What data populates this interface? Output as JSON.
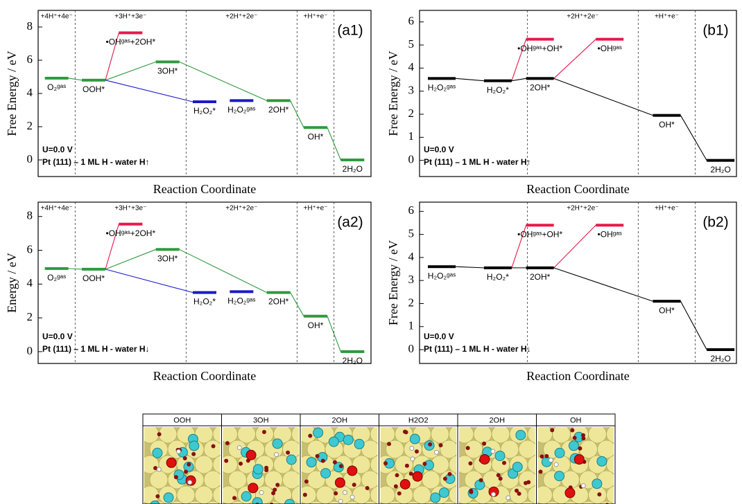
{
  "chart_data": [
    {
      "type": "energy_levels",
      "panel": "(a1)",
      "ylabel": "Free Energy / eV",
      "xlabel": "Reaction Coordinate",
      "ylim": [
        -1,
        9
      ],
      "yticks": [
        0,
        2,
        4,
        6,
        8
      ],
      "steps": [
        "+4H⁺+4e⁻",
        "+3H⁺+3e⁻",
        "+2H⁺+2e⁻",
        "+H⁺+e⁻"
      ],
      "annotations": [
        "U=0.0 V",
        "Pt (111) – 1 ML H - water H↑"
      ],
      "levels": [
        {
          "label": "O₂ᵍᵃˢ",
          "value": 4.92,
          "color": "#2e9a3e"
        },
        {
          "label": "OOH*",
          "value": 4.8,
          "color": "#2e9a3e"
        },
        {
          "label": "•OHᵍᵃˢ+2OH*",
          "value": 7.65,
          "color": "#e8174a"
        },
        {
          "label": "3OH*",
          "value": 5.9,
          "color": "#2e9a3e"
        },
        {
          "label": "H₂O₂*",
          "value": 3.5,
          "color": "#1a1ac8"
        },
        {
          "label": "H₂O₂ᵍᵃˢ",
          "value": 3.57,
          "color": "#1a1ac8"
        },
        {
          "label": "2OH*",
          "value": 3.57,
          "color": "#2e9a3e"
        },
        {
          "label": "OH*",
          "value": 1.95,
          "color": "#2e9a3e"
        },
        {
          "label": "2H₂O",
          "value": 0,
          "color": "#2e9a3e"
        }
      ]
    },
    {
      "type": "energy_levels",
      "panel": "(b1)",
      "ylabel": "Free Energy / eV",
      "xlabel": "Reaction Coordinate",
      "ylim": [
        -0.7,
        6.5
      ],
      "yticks": [
        0,
        1,
        2,
        3,
        4,
        5,
        6
      ],
      "steps": [
        "+2H⁺+2e⁻",
        "+H⁺+e⁻"
      ],
      "annotations": [
        "U=0.0 V",
        "Pt (111) – 1 ML H - water H↑"
      ],
      "levels": [
        {
          "label": "H₂O₂ᵍᵃˢ",
          "value": 3.55,
          "color": "#000000"
        },
        {
          "label": "H₂O₂*",
          "value": 3.45,
          "color": "#000000"
        },
        {
          "label": "•OHᵍᵃˢ+OH*",
          "value": 5.25,
          "color": "#e8174a"
        },
        {
          "label": "2OH*",
          "value": 3.55,
          "color": "#000000"
        },
        {
          "label": "•OHᵍᵃˢ",
          "value": 5.25,
          "color": "#e8174a"
        },
        {
          "label": "OH*",
          "value": 1.95,
          "color": "#000000"
        },
        {
          "label": "2H₂O",
          "value": 0,
          "color": "#000000"
        }
      ]
    },
    {
      "type": "energy_levels",
      "panel": "(a2)",
      "ylabel": "Energy / eV",
      "xlabel": "Reaction Coordinate",
      "ylim": [
        -0.7,
        8.85
      ],
      "yticks": [
        0,
        2,
        4,
        6,
        8
      ],
      "steps": [
        "+4H⁺+4e⁻",
        "+3H⁺+3e⁻",
        "+2H⁺+2e⁻",
        "+H⁺+e⁻"
      ],
      "annotations": [
        "U=0.0 V",
        "Pt (111) – 1 ML H - water H↓"
      ],
      "levels": [
        {
          "label": "O₂ᵍᵃˢ",
          "value": 4.92,
          "color": "#2e9a3e"
        },
        {
          "label": "OOH*",
          "value": 4.88,
          "color": "#2e9a3e"
        },
        {
          "label": "•OHᵍᵃˢ+2OH*",
          "value": 7.55,
          "color": "#e8174a"
        },
        {
          "label": "3OH*",
          "value": 6.05,
          "color": "#2e9a3e"
        },
        {
          "label": "H₂O₂*",
          "value": 3.5,
          "color": "#1a1ac8"
        },
        {
          "label": "H₂O₂ᵍᵃˢ",
          "value": 3.55,
          "color": "#1a1ac8"
        },
        {
          "label": "2OH*",
          "value": 3.5,
          "color": "#2e9a3e"
        },
        {
          "label": "OH*",
          "value": 2.1,
          "color": "#2e9a3e"
        },
        {
          "label": "2H₂O",
          "value": 0,
          "color": "#2e9a3e"
        }
      ]
    },
    {
      "type": "energy_levels",
      "panel": "(b2)",
      "ylabel": "Free Energy / eV",
      "xlabel": "Reaction Coordinate",
      "ylim": [
        -0.6,
        6.4
      ],
      "yticks": [
        0,
        1,
        2,
        3,
        4,
        5,
        6
      ],
      "steps": [
        "+2H⁺+2e⁻",
        "+H⁺+e⁻"
      ],
      "annotations": [
        "U=0.0 V",
        "Pt (111) – 1 ML H - water H↓"
      ],
      "levels": [
        {
          "label": "H₂O₂ᵍᵃˢ",
          "value": 3.6,
          "color": "#000000"
        },
        {
          "label": "H₂O₂*",
          "value": 3.55,
          "color": "#000000"
        },
        {
          "label": "•OHᵍᵃˢ+OH*",
          "value": 5.4,
          "color": "#e8174a"
        },
        {
          "label": "2OH*",
          "value": 3.55,
          "color": "#000000"
        },
        {
          "label": "•OHᵍᵃˢ",
          "value": 5.4,
          "color": "#e8174a"
        },
        {
          "label": "OH*",
          "value": 2.1,
          "color": "#000000"
        },
        {
          "label": "2H₂O",
          "value": 0,
          "color": "#000000"
        }
      ]
    }
  ],
  "snapshots": {
    "labels": [
      "OOH",
      "3OH",
      "2OH",
      "H2O2",
      "2OH",
      "OH"
    ]
  }
}
